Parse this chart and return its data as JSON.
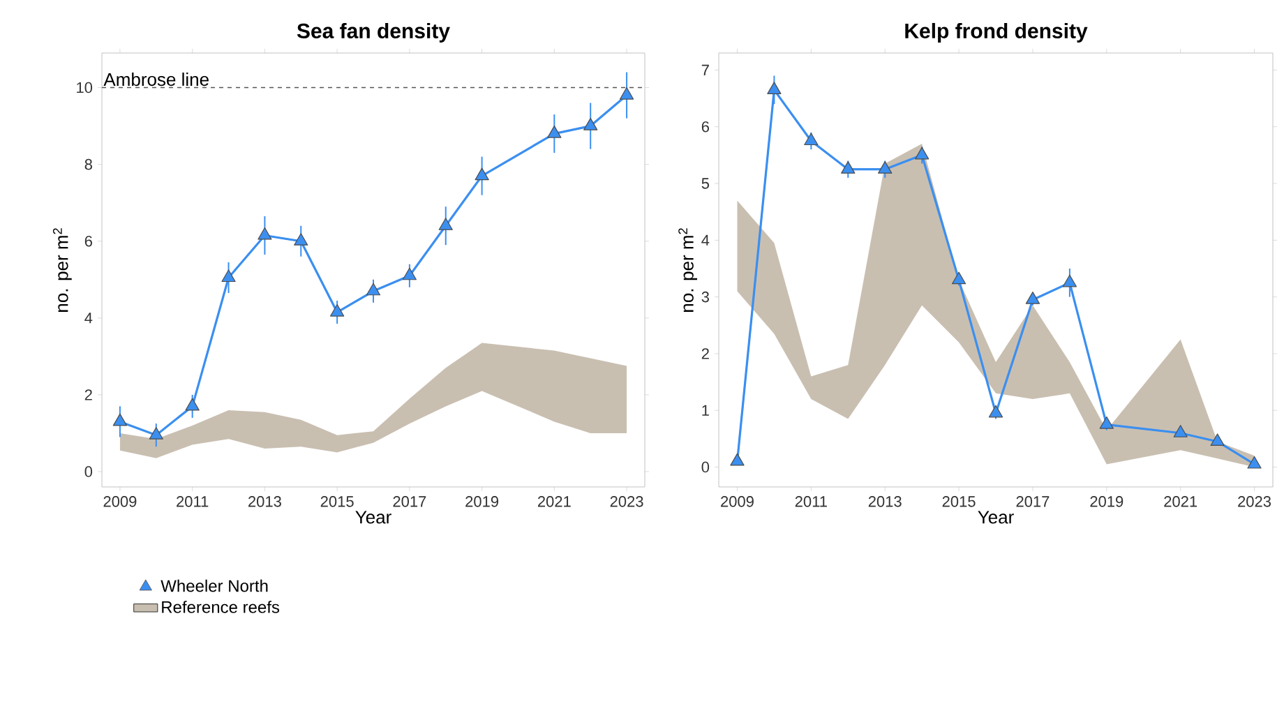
{
  "chart_data": [
    {
      "type": "line",
      "title": "Sea fan density",
      "xlabel": "Year",
      "ylabel": "no. per m$^{2}$",
      "x": [
        2009,
        2010,
        2011,
        2012,
        2013,
        2014,
        2015,
        2016,
        2017,
        2018,
        2019,
        2021,
        2022,
        2023
      ],
      "xlim": [
        2008.5,
        2023.5
      ],
      "xticks": [
        2009,
        2011,
        2013,
        2015,
        2017,
        2019,
        2021,
        2023
      ],
      "ylim": [
        -0.4,
        10.9
      ],
      "yticks": [
        0,
        2,
        4,
        6,
        8,
        10
      ],
      "grid": false,
      "legend": "bottom left",
      "ref_lines": [
        {
          "axis": "y",
          "value": 10,
          "label": "Ambrose line",
          "color": "#555555",
          "line_style": "dashed"
        }
      ],
      "series": [
        {
          "name": "Wheeler North",
          "marker": "triangle",
          "color": "#3b8ff0",
          "values": [
            1.3,
            0.95,
            1.7,
            5.05,
            6.15,
            6.0,
            4.15,
            4.7,
            5.1,
            6.4,
            7.7,
            8.8,
            9.0,
            9.8
          ],
          "errors": [
            0.4,
            0.3,
            0.3,
            0.4,
            0.5,
            0.4,
            0.3,
            0.3,
            0.3,
            0.5,
            0.5,
            0.5,
            0.6,
            0.6
          ]
        },
        {
          "name": "Reference reefs",
          "color": "#c9bfb1",
          "values": [
            null,
            null,
            null,
            null,
            null,
            null,
            null,
            null,
            null,
            null,
            null,
            null,
            null,
            null
          ],
          "lower": [
            0.55,
            0.35,
            0.7,
            0.85,
            0.6,
            0.65,
            0.5,
            0.75,
            1.25,
            1.7,
            2.1,
            1.3,
            1.0,
            1.0
          ],
          "upper": [
            1.0,
            0.85,
            1.2,
            1.6,
            1.55,
            1.35,
            0.95,
            1.05,
            1.9,
            2.7,
            3.35,
            3.15,
            2.95,
            2.75
          ]
        }
      ]
    },
    {
      "type": "line",
      "title": "Kelp frond density",
      "xlabel": "Year",
      "ylabel": "no. per m$^{2}$",
      "x": [
        2009,
        2010,
        2011,
        2012,
        2013,
        2014,
        2015,
        2016,
        2017,
        2018,
        2019,
        2021,
        2022,
        2023
      ],
      "xlim": [
        2008.5,
        2023.5
      ],
      "xticks": [
        2009,
        2011,
        2013,
        2015,
        2017,
        2019,
        2021,
        2023
      ],
      "ylim": [
        -0.35,
        7.3
      ],
      "yticks": [
        0,
        1,
        2,
        3,
        4,
        5,
        6,
        7
      ],
      "grid": false,
      "series": [
        {
          "marker": "triangle",
          "color": "#3b8ff0",
          "values": [
            0.1,
            6.65,
            5.75,
            5.25,
            5.25,
            5.5,
            3.3,
            0.95,
            2.95,
            3.25,
            0.75,
            0.6,
            0.45,
            0.05
          ],
          "errors": [
            0.05,
            0.25,
            0.15,
            0.15,
            0.15,
            0.15,
            0.1,
            0.1,
            0.1,
            0.25,
            0.1,
            0.05,
            0.05,
            0.05
          ]
        },
        {
          "color": "#c9bfb1",
          "values": [
            null,
            null,
            null,
            null,
            null,
            null,
            null,
            null,
            null,
            null,
            null,
            null,
            null,
            null
          ],
          "lower": [
            3.1,
            2.35,
            1.2,
            0.85,
            1.8,
            2.85,
            2.2,
            1.3,
            1.2,
            1.3,
            0.05,
            0.3,
            0.15,
            0.0
          ],
          "upper": [
            4.7,
            3.95,
            1.6,
            1.8,
            5.35,
            5.7,
            3.3,
            1.85,
            2.85,
            1.85,
            0.65,
            2.25,
            0.45,
            0.2
          ]
        }
      ]
    }
  ]
}
